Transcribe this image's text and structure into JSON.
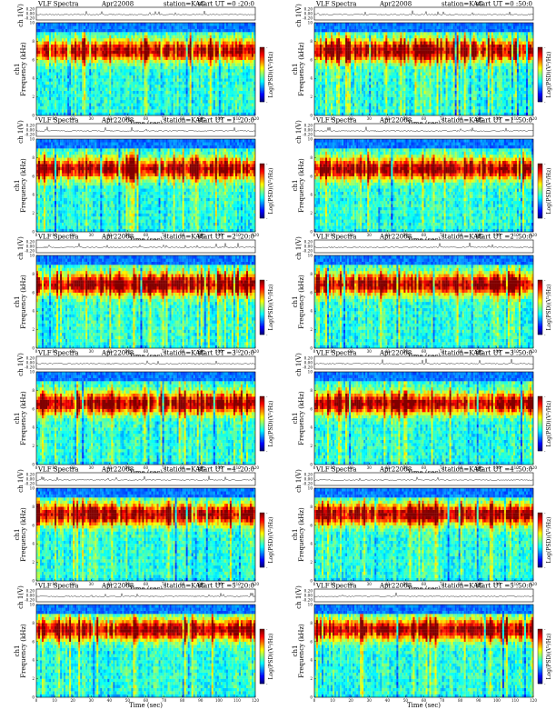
{
  "chart_data": [
    {
      "type": "heatmap",
      "title": "VLF Spectra",
      "date": "Apr22008",
      "station": "station=KAG",
      "start": "start  UT =0 :20:0",
      "top_ylabel": "ch 1(V)",
      "top_yticks": [
        "0.20",
        "0.00",
        "-0.20"
      ],
      "ylabel_line1": "ch1",
      "ylabel_line2": "Frequency  (kHz)",
      "yticks": [
        "0",
        "2",
        "4",
        "6",
        "8",
        "10"
      ],
      "xlabel": "Time  (sec)",
      "xticks": [
        "0",
        "10",
        "20",
        "30",
        "40",
        "50",
        "60",
        "70",
        "80",
        "90",
        "100",
        "110",
        "120"
      ],
      "xlim": [
        0,
        120
      ],
      "ylim": [
        0,
        10
      ],
      "colorbar_label": "Log(PSD)(V²/Hz)",
      "colorbar_ticks": [
        "-",
        "-"
      ],
      "seed": 11,
      "band_center": 7.0
    },
    {
      "type": "heatmap",
      "title": "VLF Spectra",
      "date": "Apr22008",
      "station": "station=KAG",
      "start": "start  UT =0 :50:0",
      "top_ylabel": "ch 1(V)",
      "top_yticks": [
        "0.20",
        "0.00",
        "-0.20"
      ],
      "ylabel_line1": "ch1",
      "ylabel_line2": "Frequency  (kHz)",
      "yticks": [
        "0",
        "2",
        "4",
        "6",
        "8",
        "10"
      ],
      "xlabel": "Time  (sec)",
      "xticks": [
        "0",
        "10",
        "20",
        "30",
        "40",
        "50",
        "60",
        "70",
        "80",
        "90",
        "100",
        "110",
        "120"
      ],
      "xlim": [
        0,
        120
      ],
      "ylim": [
        0,
        10
      ],
      "colorbar_label": "Log(PSD)(V²/Hz)",
      "colorbar_ticks": [
        "-",
        "-"
      ],
      "seed": 23,
      "band_center": 7.0
    },
    {
      "type": "heatmap",
      "title": "VLF Spectra",
      "date": "Apr22008",
      "station": "station=KAG",
      "start": "start  UT =1 :20:0",
      "top_ylabel": "ch 1(V)",
      "top_yticks": [
        "0.20",
        "0.00",
        "-0.20"
      ],
      "ylabel_line1": "ch1",
      "ylabel_line2": "Frequency  (kHz)",
      "yticks": [
        "0",
        "2",
        "4",
        "6",
        "8",
        "10"
      ],
      "xlabel": "Time  (sec)",
      "xticks": [
        "0",
        "10",
        "20",
        "30",
        "40",
        "50",
        "60",
        "70",
        "80",
        "90",
        "100",
        "110",
        "120"
      ],
      "xlim": [
        0,
        120
      ],
      "ylim": [
        0,
        10
      ],
      "colorbar_label": "Log(PSD)(V²/Hz)",
      "colorbar_ticks": [
        "-",
        "-"
      ],
      "seed": 37,
      "band_center": 6.8
    },
    {
      "type": "heatmap",
      "title": "VLF Spectra",
      "date": "Apr22008",
      "station": "station=KAG",
      "start": "start  UT =1 :50:0",
      "top_ylabel": "ch 1(V)",
      "top_yticks": [
        "0.20",
        "0.00",
        "-0.20"
      ],
      "ylabel_line1": "ch1",
      "ylabel_line2": "Frequency  (kHz)",
      "yticks": [
        "0",
        "2",
        "4",
        "6",
        "8",
        "10"
      ],
      "xlabel": "Time  (sec)",
      "xticks": [
        "0",
        "10",
        "20",
        "30",
        "40",
        "50",
        "60",
        "70",
        "80",
        "90",
        "100",
        "110",
        "120"
      ],
      "xlim": [
        0,
        120
      ],
      "ylim": [
        0,
        10
      ],
      "colorbar_label": "Log(PSD)(V²/Hz)",
      "colorbar_ticks": [
        "-",
        "-"
      ],
      "seed": 41,
      "band_center": 6.8
    },
    {
      "type": "heatmap",
      "title": "VLF Spectra",
      "date": "Apr22008",
      "station": "station=KAG",
      "start": "start  UT =2 :20:0",
      "top_ylabel": "ch 1(V)",
      "top_yticks": [
        "0.20",
        "0.00",
        "-0.20"
      ],
      "ylabel_line1": "ch1",
      "ylabel_line2": "Frequency  (kHz)",
      "yticks": [
        "0",
        "2",
        "4",
        "6",
        "8",
        "10"
      ],
      "xlabel": "Time  (sec)",
      "xticks": [
        "0",
        "10",
        "20",
        "30",
        "40",
        "50",
        "60",
        "70",
        "80",
        "90",
        "100",
        "110",
        "120"
      ],
      "xlim": [
        0,
        120
      ],
      "ylim": [
        0,
        10
      ],
      "colorbar_label": "Log(PSD)(V²/Hz)",
      "colorbar_ticks": [
        "-",
        "-"
      ],
      "seed": 53,
      "band_center": 6.9
    },
    {
      "type": "heatmap",
      "title": "VLF Spectra",
      "date": "Apr22008",
      "station": "station=KAG",
      "start": "start  UT =2 :50:0",
      "top_ylabel": "ch 1(V)",
      "top_yticks": [
        "0.20",
        "0.00",
        "-0.20"
      ],
      "ylabel_line1": "ch1",
      "ylabel_line2": "Frequency  (kHz)",
      "yticks": [
        "0",
        "2",
        "4",
        "6",
        "8",
        "10"
      ],
      "xlabel": "Time  (sec)",
      "xticks": [
        "0",
        "10",
        "20",
        "30",
        "40",
        "50",
        "60",
        "70",
        "80",
        "90",
        "100",
        "110",
        "120"
      ],
      "xlim": [
        0,
        120
      ],
      "ylim": [
        0,
        10
      ],
      "colorbar_label": "Log(PSD)(V²/Hz)",
      "colorbar_ticks": [
        "-",
        "-"
      ],
      "seed": 67,
      "band_center": 6.9
    },
    {
      "type": "heatmap",
      "title": "VLF Spectra",
      "date": "Apr22008",
      "station": "station=KAG",
      "start": "start  UT =3 :20:0",
      "top_ylabel": "ch 1(V)",
      "top_yticks": [
        "0.20",
        "0.00",
        "-0.20"
      ],
      "ylabel_line1": "ch1",
      "ylabel_line2": "Frequency  (kHz)",
      "yticks": [
        "0",
        "2",
        "4",
        "6",
        "8",
        "10"
      ],
      "xlabel": "Time  (sec)",
      "xticks": [
        "0",
        "10",
        "20",
        "30",
        "40",
        "50",
        "60",
        "70",
        "80",
        "90",
        "100",
        "110",
        "120"
      ],
      "xlim": [
        0,
        120
      ],
      "ylim": [
        0,
        10
      ],
      "colorbar_label": "Log(PSD)(V²/Hz)",
      "colorbar_ticks": [
        "-",
        "-"
      ],
      "seed": 71,
      "band_center": 6.6
    },
    {
      "type": "heatmap",
      "title": "VLF Spectra",
      "date": "Apr22008",
      "station": "station=KAG",
      "start": "start  UT =3 :50:0",
      "top_ylabel": "ch 1(V)",
      "top_yticks": [
        "0.20",
        "0.00",
        "-0.20"
      ],
      "ylabel_line1": "ch1",
      "ylabel_line2": "Frequency  (kHz)",
      "yticks": [
        "0",
        "2",
        "4",
        "6",
        "8",
        "10"
      ],
      "xlabel": "Time  (sec)",
      "xticks": [
        "0",
        "10",
        "20",
        "30",
        "40",
        "50",
        "60",
        "70",
        "80",
        "90",
        "100",
        "110",
        "120"
      ],
      "xlim": [
        0,
        120
      ],
      "ylim": [
        0,
        10
      ],
      "colorbar_label": "Log(PSD)(V²/Hz)",
      "colorbar_ticks": [
        "-",
        "-"
      ],
      "seed": 83,
      "band_center": 6.6
    },
    {
      "type": "heatmap",
      "title": "VLF Spectra",
      "date": "Apr22008",
      "station": "station=KAG",
      "start": "start  UT =4 :20:0",
      "top_ylabel": "ch 1(V)",
      "top_yticks": [
        "0.20",
        "0.00",
        "-0.20"
      ],
      "ylabel_line1": "ch1",
      "ylabel_line2": "Frequency  (kHz)",
      "yticks": [
        "0",
        "2",
        "4",
        "6",
        "8",
        "10"
      ],
      "xlabel": "Time  (sec)",
      "xticks": [
        "0",
        "10",
        "20",
        "30",
        "40",
        "50",
        "60",
        "70",
        "80",
        "90",
        "100",
        "110",
        "120"
      ],
      "xlim": [
        0,
        120
      ],
      "ylim": [
        0,
        10
      ],
      "colorbar_label": "Log(PSD)(V²/Hz)",
      "colorbar_ticks": [
        "-",
        "-"
      ],
      "seed": 97,
      "band_center": 7.2
    },
    {
      "type": "heatmap",
      "title": "VLF Spectra",
      "date": "Apr22008",
      "station": "station=KAG",
      "start": "start  UT =4 :50:0",
      "top_ylabel": "ch 1(V)",
      "top_yticks": [
        "0.20",
        "0.00",
        "-0.20"
      ],
      "ylabel_line1": "ch1",
      "ylabel_line2": "Frequency  (kHz)",
      "yticks": [
        "0",
        "2",
        "4",
        "6",
        "8",
        "10"
      ],
      "xlabel": "Time  (sec)",
      "xticks": [
        "0",
        "10",
        "20",
        "30",
        "40",
        "50",
        "60",
        "70",
        "80",
        "90",
        "100",
        "110",
        "120"
      ],
      "xlim": [
        0,
        120
      ],
      "ylim": [
        0,
        10
      ],
      "colorbar_label": "Log(PSD)(V²/Hz)",
      "colorbar_ticks": [
        "-",
        "-"
      ],
      "seed": 101,
      "band_center": 7.2
    },
    {
      "type": "heatmap",
      "title": "VLF Spectra",
      "date": "Apr22008",
      "station": "station=KAG",
      "start": "start  UT =5 :20:0",
      "top_ylabel": "ch 1(V)",
      "top_yticks": [
        "0.20",
        "0.00",
        "-0.20"
      ],
      "ylabel_line1": "ch1",
      "ylabel_line2": "Frequency  (kHz)",
      "yticks": [
        "0",
        "2",
        "4",
        "6",
        "8",
        "10"
      ],
      "xlabel": "Time  (sec)",
      "xticks": [
        "0",
        "10",
        "20",
        "30",
        "40",
        "50",
        "60",
        "70",
        "80",
        "90",
        "100",
        "110",
        "120"
      ],
      "xlim": [
        0,
        120
      ],
      "ylim": [
        0,
        10
      ],
      "colorbar_label": "Log(PSD)(V²/Hz)",
      "colorbar_ticks": [
        "-",
        "-"
      ],
      "seed": 113,
      "band_center": 7.3
    },
    {
      "type": "heatmap",
      "title": "VLF Spectra",
      "date": "Apr22008",
      "station": "station=KAG",
      "start": "start  UT =5 :50:0",
      "top_ylabel": "ch 1(V)",
      "top_yticks": [
        "0.20",
        "0.00",
        "-0.20"
      ],
      "ylabel_line1": "ch1",
      "ylabel_line2": "Frequency  (kHz)",
      "yticks": [
        "0",
        "2",
        "4",
        "6",
        "8",
        "10"
      ],
      "xlabel": "Time  (sec)",
      "xticks": [
        "0",
        "10",
        "20",
        "30",
        "40",
        "50",
        "60",
        "70",
        "80",
        "90",
        "100",
        "110",
        "120"
      ],
      "xlim": [
        0,
        120
      ],
      "ylim": [
        0,
        10
      ],
      "colorbar_label": "Log(PSD)(V²/Hz)",
      "colorbar_ticks": [
        "-",
        "-"
      ],
      "seed": 127,
      "band_center": 7.3
    }
  ]
}
